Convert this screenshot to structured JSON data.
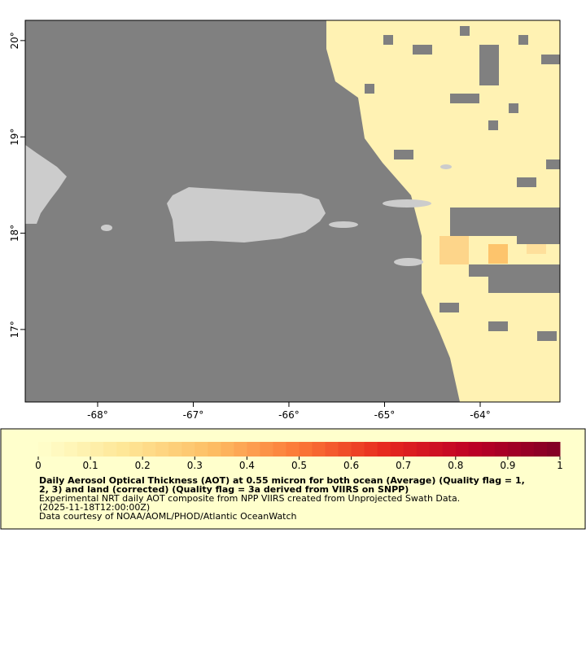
{
  "map": {
    "xlim": [
      -68.757,
      -63.166
    ],
    "ylim": [
      16.247,
      20.21
    ],
    "xticks": [
      {
        "value": -68,
        "label": "-68°"
      },
      {
        "value": -67,
        "label": "-67°"
      },
      {
        "value": -66,
        "label": "-66°"
      },
      {
        "value": -65,
        "label": "-65°"
      },
      {
        "value": -64,
        "label": "-64°"
      }
    ],
    "yticks": [
      {
        "value": 20,
        "label": "20°"
      },
      {
        "value": 19,
        "label": "19°"
      },
      {
        "value": 18,
        "label": "18°"
      },
      {
        "value": 17,
        "label": "17°"
      }
    ]
  },
  "colorbar": {
    "lim": [
      0,
      1
    ],
    "ticks": [
      0,
      0.1,
      0.2,
      0.3,
      0.4,
      0.5,
      0.6,
      0.7,
      0.8,
      0.9,
      1
    ]
  },
  "caption": {
    "title_lines": [
      "Daily Aerosol Optical Thickness (AOT) at 0.55 micron for both ocean (Average) (Quality flag = 1,",
      "2, 3) and land (corrected) (Quality flag = 3a derived from VIIRS on SNPP)"
    ],
    "note_lines": [
      "Experimental NRT daily AOT composite from NPP VIIRS created from Unprojected Swath Data.",
      "(2025-11-18T12:00:00Z)",
      "Data courtesy of NOAA/AOML/PHOD/Atlantic OceanWatch"
    ]
  }
}
